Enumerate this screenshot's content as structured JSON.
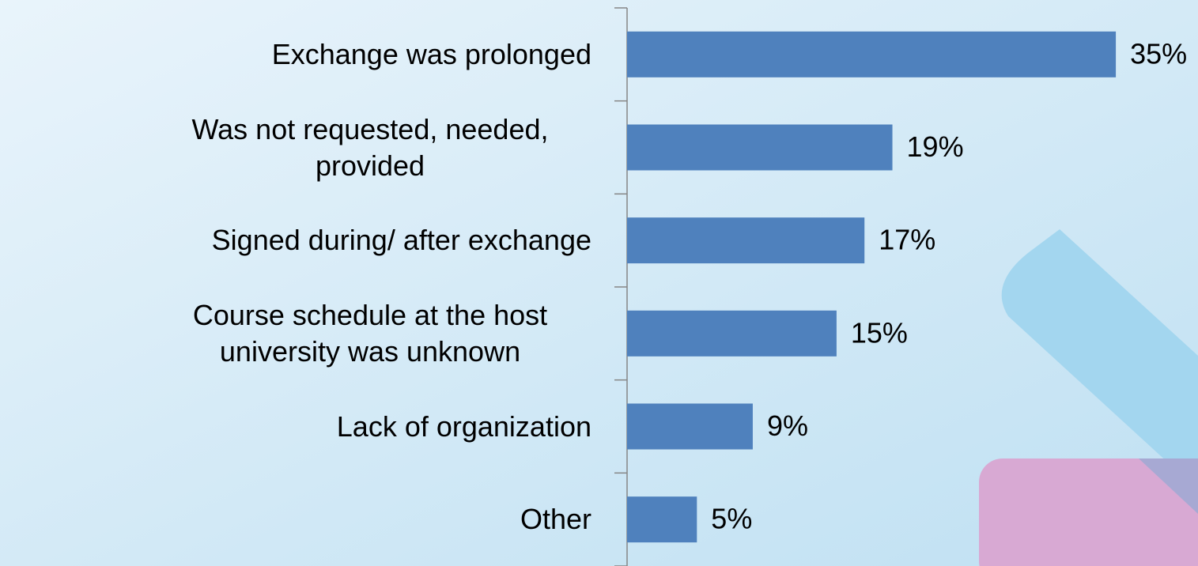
{
  "chart_data": {
    "type": "barh",
    "categories": [
      "Exchange was prolonged",
      "Was not requested, needed, provided",
      "Signed during/ after exchange",
      "Course schedule at the host university was unknown",
      "Lack of organization",
      "Other"
    ],
    "values": [
      35,
      19,
      17,
      15,
      9,
      5
    ],
    "value_labels": [
      "35%",
      "19%",
      "17%",
      "15%",
      "9%",
      "5%"
    ],
    "color": "#4f81bd"
  }
}
